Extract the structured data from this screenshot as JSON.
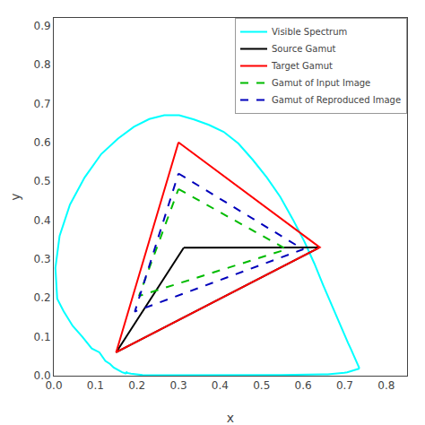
{
  "chart_data": {
    "type": "line",
    "title": "",
    "xlabel": "x",
    "ylabel": "y",
    "xlim": [
      0,
      0.85
    ],
    "ylim": [
      0,
      0.92
    ],
    "xticks": [
      {
        "value": 0,
        "label": "0.0"
      },
      0.1,
      0.2,
      0.3,
      0.4,
      0.5,
      0.6,
      0.7,
      0.8
    ],
    "yticks": [
      {
        "value": 0,
        "label": "0.0"
      },
      0.1,
      0.2,
      0.3,
      0.4,
      0.5,
      0.6,
      0.7,
      0.8,
      0.9
    ],
    "grid": false,
    "legend": "upper right",
    "series": [
      {
        "name": "Visible Spectrum",
        "color": "#00FFFF",
        "line_style": "solid",
        "x": [
          0.1741,
          0.174,
          0.1738,
          0.1736,
          0.173,
          0.1721,
          0.1714,
          0.1703,
          0.1689,
          0.1669,
          0.1644,
          0.1611,
          0.1566,
          0.151,
          0.144,
          0.1355,
          0.1241,
          0.1096,
          0.0913,
          0.0687,
          0.0454,
          0.0235,
          0.0082,
          0.0039,
          0.0139,
          0.0389,
          0.0743,
          0.1142,
          0.1547,
          0.1929,
          0.2296,
          0.2658,
          0.3016,
          0.3373,
          0.3731,
          0.4087,
          0.4441,
          0.4788,
          0.5125,
          0.5448,
          0.5752,
          0.6029,
          0.627,
          0.6482,
          0.6658,
          0.6801,
          0.6915,
          0.7006,
          0.7079,
          0.714,
          0.719,
          0.723,
          0.726,
          0.7283,
          0.73,
          0.7311,
          0.732,
          0.7327,
          0.7334,
          0.734,
          0.7344,
          0.7346,
          0.7347,
          0.7347,
          0.7347,
          0.7347,
          0.7347,
          0.7347,
          0.7344,
          0.7336,
          0.7321,
          0.73,
          0.7274,
          0.7241,
          0.7202,
          0.7163,
          0.7118,
          0.7059,
          0.699,
          0.6907,
          0.6812,
          0.6706,
          0.6591,
          0.6468,
          0.6337,
          0.6201,
          0.606,
          0.5916,
          0.5768,
          0.5617,
          0.5465,
          0.5311,
          0.5156,
          0.5,
          0.4844,
          0.4689,
          0.4534,
          0.438,
          0.4227,
          0.4074,
          0.3924,
          0.3776,
          0.3631,
          0.3489,
          0.335,
          0.3214,
          0.3081,
          0.2951,
          0.2824,
          0.27,
          0.258,
          0.2462,
          0.2349,
          0.2239,
          0.2135,
          0.2036,
          0.1943,
          0.1856,
          0.1769,
          0.1749,
          0.1741
        ],
        "values": [
          0.005,
          0.005,
          0.005,
          0.005,
          0.006,
          0.006,
          0.006,
          0.007,
          0.007,
          0.008,
          0.009,
          0.011,
          0.013,
          0.017,
          0.021,
          0.03,
          0.038,
          0.06,
          0.07,
          0.1,
          0.128,
          0.166,
          0.198,
          0.277,
          0.359,
          0.44,
          0.51,
          0.57,
          0.61,
          0.64,
          0.66,
          0.67,
          0.67,
          0.659,
          0.645,
          0.627,
          0.597,
          0.5551,
          0.51,
          0.46,
          0.402,
          0.345,
          0.2883,
          0.2327,
          0.1878,
          0.1514,
          0.124,
          0.1015,
          0.0845,
          0.0705,
          0.0592,
          0.0504,
          0.0435,
          0.0381,
          0.0335,
          0.0302,
          0.0275,
          0.0254,
          0.0236,
          0.0221,
          0.0209,
          0.02,
          0.0193,
          0.0189,
          0.0186,
          0.0184,
          0.0182,
          0.0181,
          0.0178,
          0.0176,
          0.0171,
          0.0164,
          0.0155,
          0.0142,
          0.0127,
          0.0115,
          0.0101,
          0.0086,
          0.0073,
          0.0062,
          0.0053,
          0.0044,
          0.0037,
          0.0033,
          0.0029,
          0.0026,
          0.0024,
          0.0022,
          0.002,
          0.0019,
          0.0017,
          0.0016,
          0.0015,
          0.0014,
          0.0013,
          0.0012,
          0.0011,
          0.0011,
          0.001,
          0.0009,
          0.0008,
          0.0008,
          0.0008,
          0.0007,
          0.0007,
          0.0007,
          0.0007,
          0.0007,
          0.0007,
          0.0007,
          0.0007,
          0.0008,
          0.001,
          0.0012,
          0.0017,
          0.0023,
          0.0034,
          0.005,
          0.007,
          0.01,
          0.005
        ]
      },
      {
        "name": "Source Gamut",
        "color": "#000000",
        "line_style": "solid",
        "x": [
          0.3127,
          0.64,
          0.15,
          0.3127
        ],
        "values": [
          0.329,
          0.33,
          0.06,
          0.329
        ]
      },
      {
        "name": "Target Gamut",
        "color": "#FF0000",
        "line_style": "solid",
        "x": [
          0.3,
          0.64,
          0.15,
          0.3
        ],
        "values": [
          0.6,
          0.33,
          0.06,
          0.6
        ]
      },
      {
        "name": "Gamut of Input Image",
        "color": "#00BB00",
        "line_style": "dashed",
        "x": [
          0.3,
          0.56,
          0.205,
          0.3
        ],
        "values": [
          0.48,
          0.325,
          0.205,
          0.48
        ]
      },
      {
        "name": "Gamut of Reproduced Image",
        "color": "#0000BB",
        "line_style": "dashed",
        "x": [
          0.3,
          0.6,
          0.195,
          0.3
        ],
        "values": [
          0.52,
          0.325,
          0.165,
          0.52
        ]
      }
    ]
  }
}
